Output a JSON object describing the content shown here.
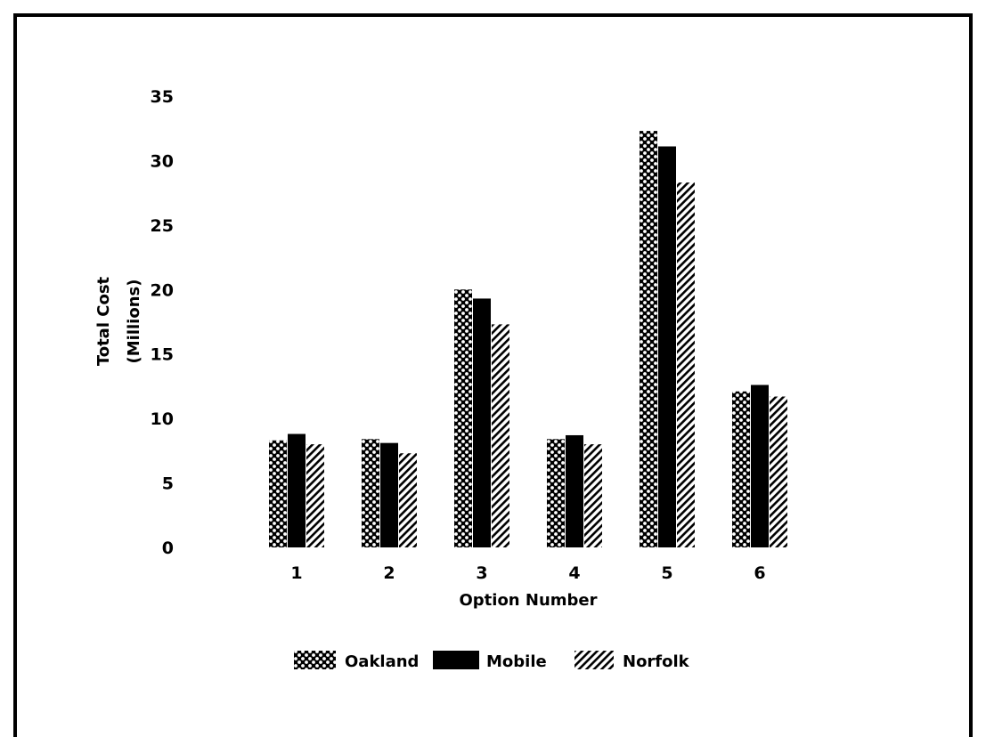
{
  "chart_data": {
    "type": "bar",
    "title": "",
    "xlabel": "Option Number",
    "ylabel": "Total Cost",
    "ylabel_sub": "(Millions)",
    "categories": [
      "1",
      "2",
      "3",
      "4",
      "5",
      "6"
    ],
    "ylim": [
      0,
      35
    ],
    "yticks": [
      "0",
      "5",
      "10",
      "15",
      "20",
      "25",
      "30",
      "35"
    ],
    "grid": false,
    "legend_position": "bottom",
    "series": [
      {
        "name": "Oakland",
        "pattern": "crosshatch",
        "values": [
          8.3,
          8.4,
          20.0,
          8.4,
          32.3,
          12.1
        ]
      },
      {
        "name": "Mobile",
        "pattern": "solid",
        "values": [
          8.8,
          8.1,
          19.3,
          8.7,
          31.1,
          12.6
        ]
      },
      {
        "name": "Norfolk",
        "pattern": "diagonal",
        "values": [
          8.0,
          7.3,
          17.3,
          8.0,
          28.3,
          11.7
        ]
      }
    ]
  },
  "colors": {
    "ink": "#000000",
    "paper": "#ffffff"
  }
}
